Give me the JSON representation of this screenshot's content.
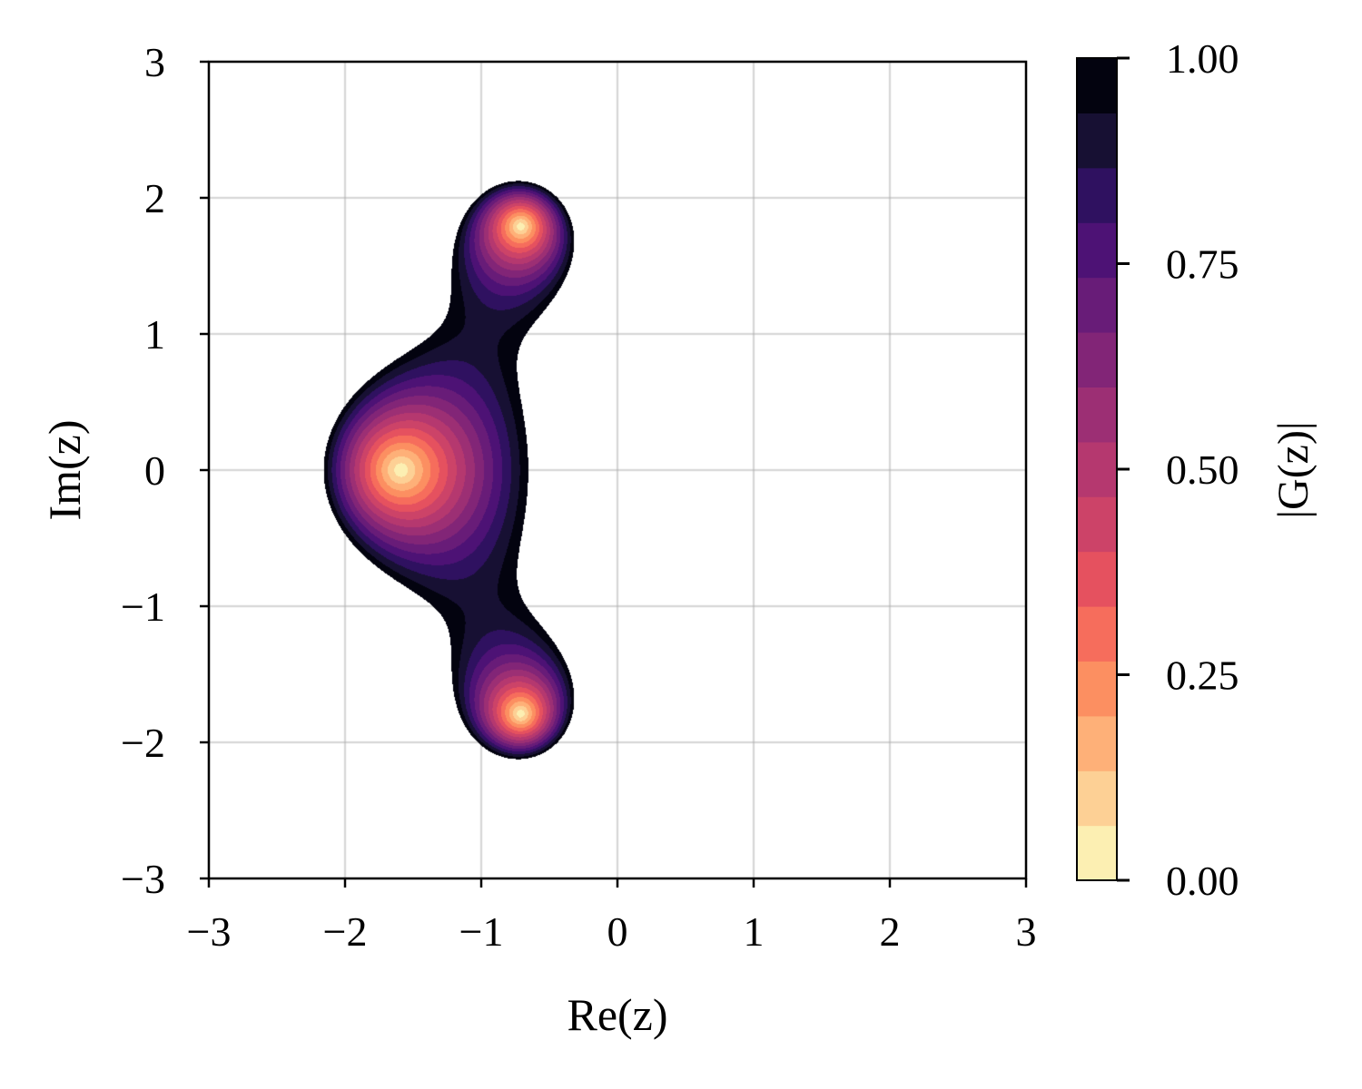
{
  "chart_data": {
    "type": "heatmap",
    "subtype": "filled-contour",
    "title": "",
    "xlabel": "Re(z)",
    "ylabel": "Im(z)",
    "xlim": [
      -3,
      3
    ],
    "ylim": [
      -3,
      3
    ],
    "xticks": [
      -3,
      -2,
      -1,
      0,
      1,
      2,
      3
    ],
    "yticks": [
      -3,
      -2,
      -1,
      0,
      1,
      2,
      3
    ],
    "xtick_labels": [
      "−3",
      "−2",
      "−1",
      "0",
      "1",
      "2",
      "3"
    ],
    "ytick_labels": [
      "−3",
      "−2",
      "−1",
      "0",
      "1",
      "2",
      "3"
    ],
    "grid": true,
    "colormap": "magma_r",
    "region": "values shown only where |G(z)| ≤ 1; white elsewhere",
    "minima": [
      {
        "re": -1.59,
        "im": 0.0,
        "value": 0.0
      },
      {
        "re": -0.71,
        "im": 1.79,
        "value": 0.0
      },
      {
        "re": -0.71,
        "im": -1.79,
        "value": 0.0
      }
    ],
    "colorbar": {
      "label": "|G(z)|",
      "range": [
        0,
        1
      ],
      "ticks": [
        0.0,
        0.25,
        0.5,
        0.75,
        1.0
      ],
      "tick_labels": [
        "0.00",
        "0.25",
        "0.50",
        "0.75",
        "1.00"
      ],
      "levels": [
        0,
        0.0667,
        0.1333,
        0.2,
        0.2667,
        0.3333,
        0.4,
        0.4667,
        0.5333,
        0.6,
        0.6667,
        0.7333,
        0.8,
        0.8667,
        0.9333,
        1.0
      ],
      "band_colors": [
        "#fcefb2",
        "#fdd095",
        "#feb078",
        "#fc8f61",
        "#f66d5c",
        "#e5515f",
        "#cc4368",
        "#b5386f",
        "#9c2f74",
        "#822577",
        "#681c78",
        "#4d1275",
        "#2f1160",
        "#171033",
        "#03030f"
      ]
    }
  }
}
